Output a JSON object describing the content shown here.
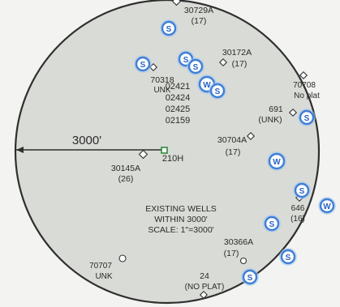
{
  "legend": {
    "line1": "EXISTING WELLS",
    "line2": "WITHIN 3000'",
    "line3": "SCALE: 1\"=3000'"
  },
  "radius_label": "3000'",
  "center_well": {
    "label": "210H",
    "stack": [
      "02421",
      "02424",
      "02425",
      "02159"
    ],
    "color": "#2e8b3a"
  },
  "wells": {
    "w30729A": {
      "id": "30729A",
      "sub": "(17)"
    },
    "w30172A": {
      "id": "30172A",
      "sub": "(17)"
    },
    "w70318": {
      "id": "70318",
      "sub": "UNK"
    },
    "w70708": {
      "id": "70708",
      "sub": "No plat"
    },
    "w691": {
      "id": "691",
      "sub": "(UNK)"
    },
    "w30704A": {
      "id": "30704A",
      "sub": "(17)"
    },
    "w30145A": {
      "id": "30145A",
      "sub": "(26)"
    },
    "w646": {
      "id": "646",
      "sub": "(16)"
    },
    "w30366A": {
      "id": "30366A",
      "sub": "(17)"
    },
    "w70707": {
      "id": "70707",
      "sub": "UNK"
    },
    "w24": {
      "id": "24",
      "sub": "(NO PLAT)"
    }
  },
  "marker_letters": {
    "s": "S",
    "w": "W"
  },
  "colors": {
    "boundary": "#2f2f2f",
    "map_fill": "#d9dbd6",
    "marker_blue": "#3f7fd6",
    "center_green": "#2e8b3a",
    "background": "#f3f4f1"
  }
}
